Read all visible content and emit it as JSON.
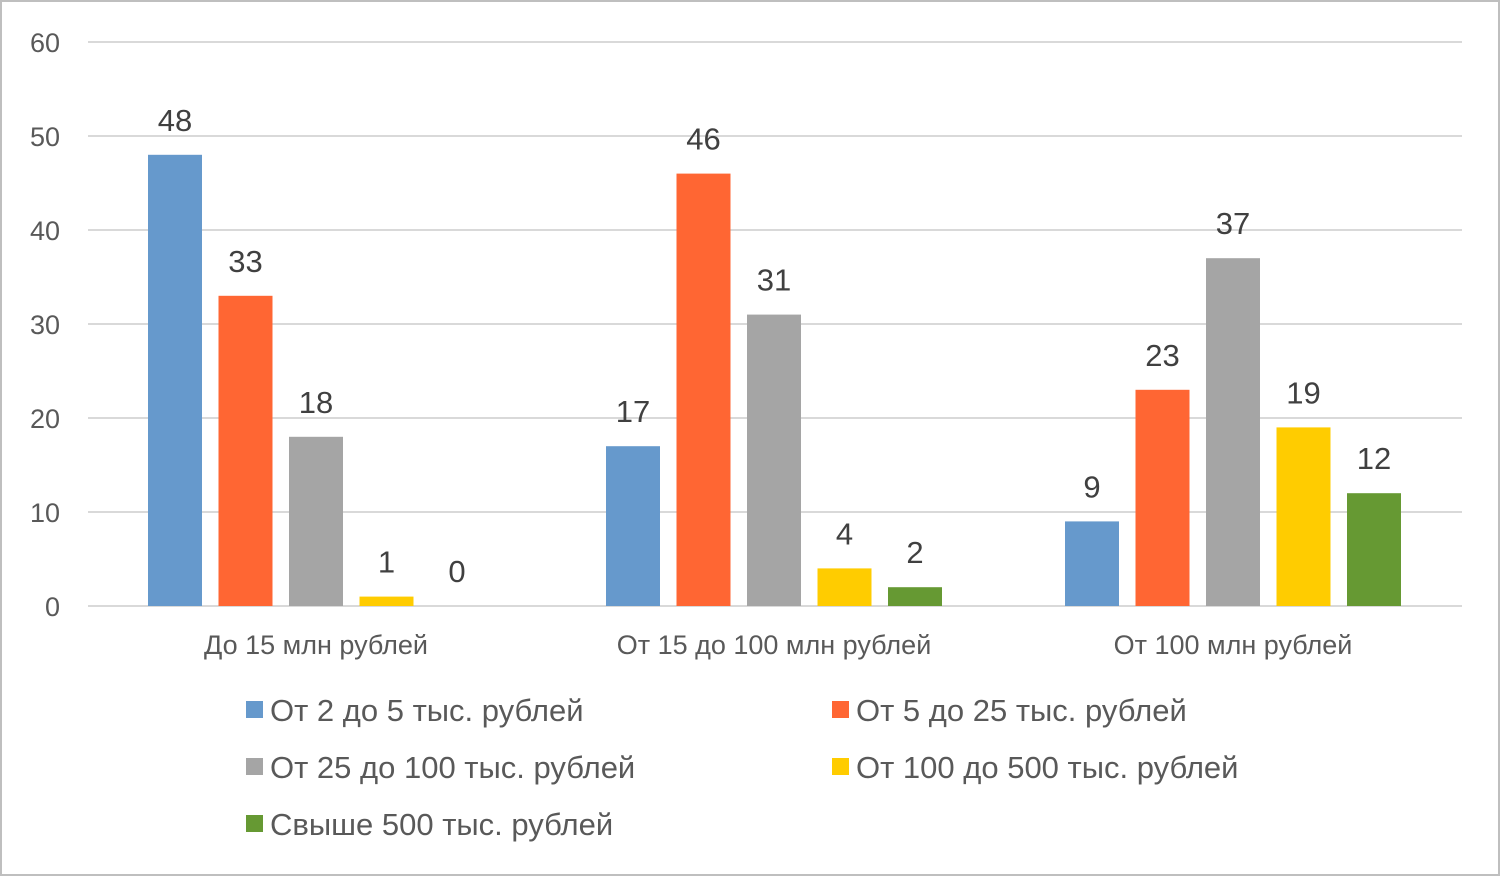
{
  "chart_data": {
    "type": "bar",
    "title": "",
    "xlabel": "",
    "ylabel": "",
    "ylim": [
      0,
      60
    ],
    "yticks": [
      "0",
      "10",
      "20",
      "30",
      "40",
      "50",
      "60"
    ],
    "grid": true,
    "legend_position": "bottom",
    "categories": [
      "До 15 млн рублей",
      "От 15 до 100 млн рублей",
      "От 100 млн рублей"
    ],
    "series": [
      {
        "name": "От 2 до 5 тыс. рублей",
        "color": "#6699cc",
        "values": [
          48,
          17,
          9
        ]
      },
      {
        "name": "От 5 до 25 тыс. рублей",
        "color": "#ff6633",
        "values": [
          33,
          46,
          23
        ]
      },
      {
        "name": "От 25 до 100 тыс. рублей",
        "color": "#a5a5a5",
        "values": [
          18,
          31,
          37
        ]
      },
      {
        "name": "От 100 до 500 тыс. рублей",
        "color": "#ffcc00",
        "values": [
          1,
          4,
          19
        ]
      },
      {
        "name": "Свыше 500 тыс. рублей",
        "color": "#669933",
        "values": [
          0,
          2,
          12
        ]
      }
    ]
  }
}
